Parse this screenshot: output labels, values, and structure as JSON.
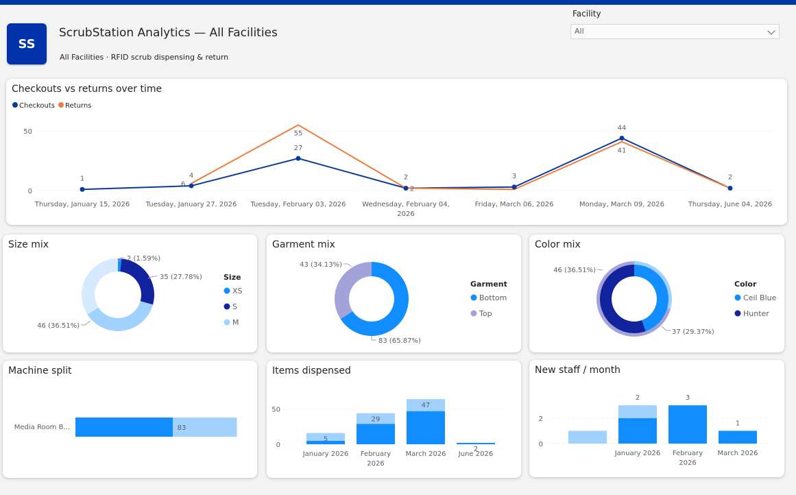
{
  "header": {
    "logo_text": "SS",
    "title": "ScrubStation Analytics — All Facilities",
    "subtitle": "All Facilities · RFID scrub dispensing & return",
    "facility_label": "Facility",
    "facility_value": "All"
  },
  "colors": {
    "navy": "#12239e",
    "blue": "#118dff",
    "light_blue": "#a0d1ff",
    "lavender": "#a3a3d9",
    "orange": "#ed7d3d",
    "line_navy": "#0a3a9c"
  },
  "cards": {
    "timeline": {
      "title": "Checkouts vs returns over time"
    },
    "size": {
      "title": "Size mix"
    },
    "garment": {
      "title": "Garment mix"
    },
    "color": {
      "title": "Color mix"
    },
    "machine": {
      "title": "Machine split"
    },
    "items": {
      "title": "Items dispensed"
    },
    "staff": {
      "title": "New staff / month"
    }
  },
  "chart_data": [
    {
      "id": "timeline",
      "type": "line",
      "title": "Checkouts vs returns over time",
      "legend": {
        "placement": "top-left",
        "entries": [
          "Checkouts",
          "Returns"
        ]
      },
      "x": [
        "Thursday, January 15, 2026",
        "Tuesday, January 27, 2026",
        "Tuesday, February 03, 2026",
        "Wednesday, February 04, 2026",
        "Friday, March 06, 2026",
        "Monday, March 09, 2026",
        "Thursday, June 04, 2026"
      ],
      "x_tick_lines": [
        [
          "Thursday, January 15, 2026"
        ],
        [
          "Tuesday, January 27, 2026"
        ],
        [
          "Tuesday, February 03, 2026"
        ],
        [
          "Wednesday, February 04,",
          "2026"
        ],
        [
          "Friday, March 06, 2026"
        ],
        [
          "Monday, March 09, 2026"
        ],
        [
          "Thursday, June 04, 2026"
        ]
      ],
      "series": [
        {
          "name": "Checkouts",
          "values": [
            1,
            4,
            27,
            2,
            3,
            44,
            2
          ],
          "labels": [
            "1",
            "4",
            "27",
            "2",
            "3",
            "44",
            "2"
          ]
        },
        {
          "name": "Returns",
          "values": [
            null,
            6,
            55,
            2,
            1,
            41,
            2
          ],
          "labels": [
            "",
            "6",
            "55",
            "2",
            "",
            "41",
            ""
          ]
        }
      ],
      "y_ticks": [
        "0",
        "50"
      ],
      "ylim": [
        0,
        60
      ],
      "grid": true
    },
    {
      "id": "size",
      "type": "pie",
      "title": "Size mix",
      "legend_title": "Size",
      "slices": [
        {
          "name": "XS",
          "value": 2,
          "label": "2 (1.59%)"
        },
        {
          "name": "S",
          "value": 35,
          "label": "35 (27.78%)"
        },
        {
          "name": "M",
          "value": 46,
          "label": "46 (36.51%)"
        },
        {
          "name": "",
          "value": 43,
          "label": ""
        }
      ]
    },
    {
      "id": "garment",
      "type": "pie",
      "title": "Garment mix",
      "legend_title": "Garment",
      "slices": [
        {
          "name": "Bottom",
          "value": 83,
          "label": "83 (65.87%)"
        },
        {
          "name": "Top",
          "value": 43,
          "label": "43 (34.13%)"
        }
      ]
    },
    {
      "id": "color",
      "type": "pie",
      "title": "Color mix",
      "legend_title": "Color",
      "slices": [
        {
          "name": "Ceil Blue",
          "value": 37,
          "label": "37 (29.37%)"
        },
        {
          "name": "Hunter",
          "value": 46,
          "label": "46 (36.51%)"
        },
        {
          "name": "",
          "value": 43,
          "label": ""
        }
      ]
    },
    {
      "id": "machine",
      "type": "bar",
      "title": "Machine split",
      "orientation": "horizontal",
      "categories": [
        "Media Room B..."
      ],
      "series": [
        {
          "name": "",
          "values": [
            126
          ]
        },
        {
          "name": "",
          "values": [
            83
          ]
        }
      ],
      "labels": [
        "",
        "83"
      ]
    },
    {
      "id": "items",
      "type": "bar",
      "title": "Items dispensed",
      "categories": [
        "January 2026",
        "February 2026",
        "March 2026",
        "June 2026"
      ],
      "category_lines": [
        [
          "January 2026"
        ],
        [
          "February",
          "2026"
        ],
        [
          "March 2026"
        ],
        [
          "June 2026"
        ]
      ],
      "series": [
        {
          "name": "",
          "values": [
            5,
            29,
            47,
            2
          ]
        },
        {
          "name": "",
          "values": [
            11,
            15,
            17,
            0
          ]
        }
      ],
      "labels": [
        "5",
        "29",
        "47",
        "2"
      ],
      "y_ticks": [
        "0",
        "50"
      ],
      "ylim": [
        0,
        70
      ]
    },
    {
      "id": "staff",
      "type": "bar",
      "title": "New staff / month",
      "categories": [
        "",
        "January 2026",
        "February 2026",
        "March 2026"
      ],
      "category_lines": [
        [
          ""
        ],
        [
          "January 2026"
        ],
        [
          "February",
          "2026"
        ],
        [
          "March 2026"
        ]
      ],
      "series": [
        {
          "name": "",
          "values": [
            0,
            2,
            3,
            1
          ]
        },
        {
          "name": "",
          "values": [
            1,
            1,
            0,
            0
          ]
        }
      ],
      "labels": [
        "",
        "2",
        "3",
        "1"
      ],
      "y_ticks": [
        "0",
        "2"
      ],
      "ylim": [
        0,
        3.6
      ]
    }
  ]
}
